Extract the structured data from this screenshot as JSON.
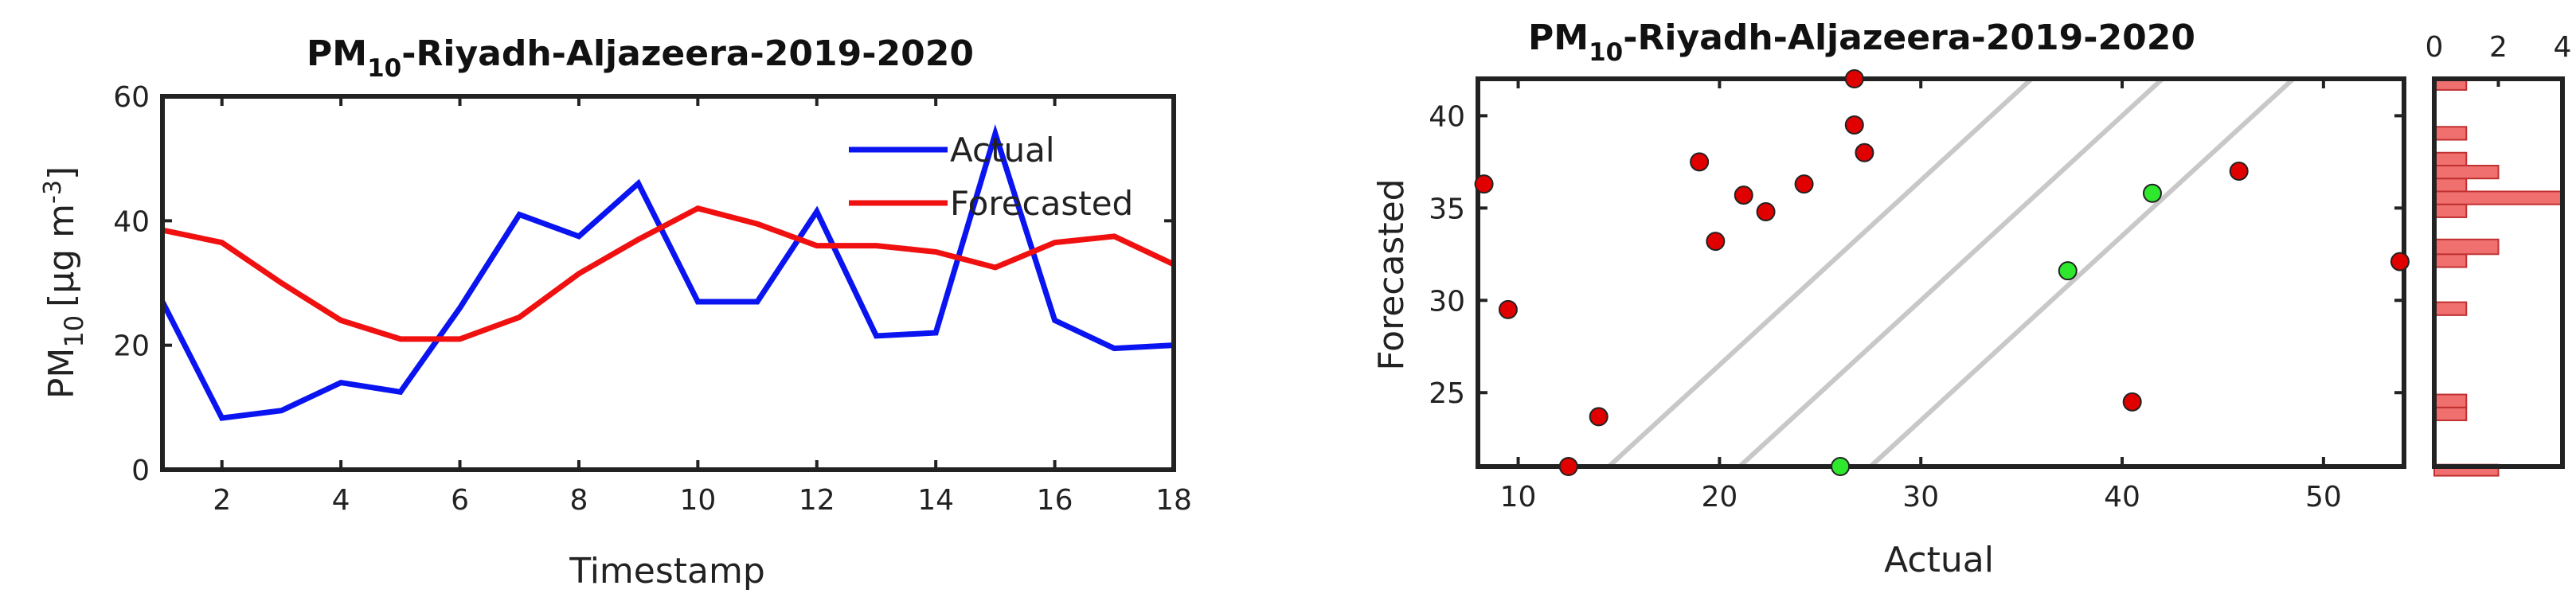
{
  "chart_data": [
    {
      "type": "line",
      "title_main": "PM",
      "title_sub": "10",
      "title_rest": "-Riyadh-Aljazeera-2019-2020",
      "xlabel": "Timestamp",
      "ylabel_main": "PM",
      "ylabel_sub": "10",
      "ylabel_unit": "[μg m",
      "ylabel_sup": "-3",
      "ylabel_close": "]",
      "xlim": [
        1,
        18
      ],
      "ylim": [
        0,
        60
      ],
      "xticks": [
        2,
        4,
        6,
        8,
        10,
        12,
        14,
        16,
        18
      ],
      "yticks": [
        0,
        20,
        40,
        60
      ],
      "legend_position": "top-right",
      "x": [
        1,
        2,
        3,
        4,
        5,
        6,
        7,
        8,
        9,
        10,
        11,
        12,
        13,
        14,
        15,
        16,
        17,
        18
      ],
      "series": [
        {
          "name": "Actual",
          "color": "#0a14f0",
          "values": [
            27,
            8.3,
            9.5,
            14,
            12.5,
            26,
            41,
            37.5,
            46,
            27,
            27,
            41.5,
            21.5,
            22,
            54,
            24,
            19.5,
            20
          ]
        },
        {
          "name": "Forecasted",
          "color": "#f01010",
          "values": [
            38.5,
            36.5,
            30,
            24,
            21,
            21,
            24.5,
            31.5,
            37,
            42,
            39.5,
            36,
            36,
            35,
            32.5,
            36.5,
            37.5,
            33
          ]
        }
      ]
    },
    {
      "type": "scatter",
      "title_main": "PM",
      "title_sub": "10",
      "title_rest": "-Riyadh-Aljazeera-2019-2020",
      "xlabel": "Actual",
      "ylabel": "Forecasted",
      "xlim": [
        8,
        54
      ],
      "ylim": [
        21,
        42
      ],
      "xticks": [
        10,
        20,
        30,
        40,
        50
      ],
      "yticks": [
        25,
        30,
        35,
        40
      ],
      "grid": false,
      "reference_lines": [
        {
          "slope": 1,
          "offset": -6.5
        },
        {
          "slope": 1,
          "offset": 0
        },
        {
          "slope": 1,
          "offset": 6.5
        }
      ],
      "points": [
        {
          "x": 8.3,
          "y": 36.3,
          "color": "#e00000"
        },
        {
          "x": 9.5,
          "y": 29.5,
          "color": "#e00000"
        },
        {
          "x": 12.5,
          "y": 21,
          "color": "#e00000"
        },
        {
          "x": 14,
          "y": 23.7,
          "color": "#e00000"
        },
        {
          "x": 19,
          "y": 37.5,
          "color": "#e00000"
        },
        {
          "x": 19.8,
          "y": 33.2,
          "color": "#e00000"
        },
        {
          "x": 21.2,
          "y": 35.7,
          "color": "#e00000"
        },
        {
          "x": 22.3,
          "y": 34.8,
          "color": "#e00000"
        },
        {
          "x": 24.2,
          "y": 36.3,
          "color": "#e00000"
        },
        {
          "x": 26.7,
          "y": 42,
          "color": "#e00000"
        },
        {
          "x": 26.7,
          "y": 39.5,
          "color": "#e00000"
        },
        {
          "x": 27.2,
          "y": 38,
          "color": "#e00000"
        },
        {
          "x": 40.5,
          "y": 24.5,
          "color": "#e00000"
        },
        {
          "x": 45.8,
          "y": 37,
          "color": "#e00000"
        },
        {
          "x": 53.8,
          "y": 32.1,
          "color": "#e00000"
        },
        {
          "x": 26,
          "y": 21,
          "color": "#2ee82e"
        },
        {
          "x": 37.3,
          "y": 31.6,
          "color": "#2ee82e"
        },
        {
          "x": 41.5,
          "y": 35.8,
          "color": "#2ee82e"
        }
      ]
    },
    {
      "type": "bar",
      "orientation": "horizontal",
      "description": "histogram of Forecasted values",
      "xticks": [
        0,
        2,
        4
      ],
      "xlim": [
        0,
        4
      ],
      "ylim": [
        21,
        42
      ],
      "color": "#f07070",
      "bins": [
        {
          "y0": 20.5,
          "y1": 21.1,
          "count": 2
        },
        {
          "y0": 23.5,
          "y1": 24.2,
          "count": 1
        },
        {
          "y0": 24.2,
          "y1": 24.9,
          "count": 1
        },
        {
          "y0": 29.2,
          "y1": 29.9,
          "count": 1
        },
        {
          "y0": 31.8,
          "y1": 32.5,
          "count": 1
        },
        {
          "y0": 32.5,
          "y1": 33.3,
          "count": 2
        },
        {
          "y0": 34.5,
          "y1": 35.2,
          "count": 1
        },
        {
          "y0": 35.2,
          "y1": 35.9,
          "count": 4
        },
        {
          "y0": 35.9,
          "y1": 36.6,
          "count": 1
        },
        {
          "y0": 36.6,
          "y1": 37.3,
          "count": 2
        },
        {
          "y0": 37.3,
          "y1": 38.0,
          "count": 1
        },
        {
          "y0": 38.7,
          "y1": 39.4,
          "count": 1
        },
        {
          "y0": 41.4,
          "y1": 42.0,
          "count": 1
        }
      ]
    }
  ]
}
